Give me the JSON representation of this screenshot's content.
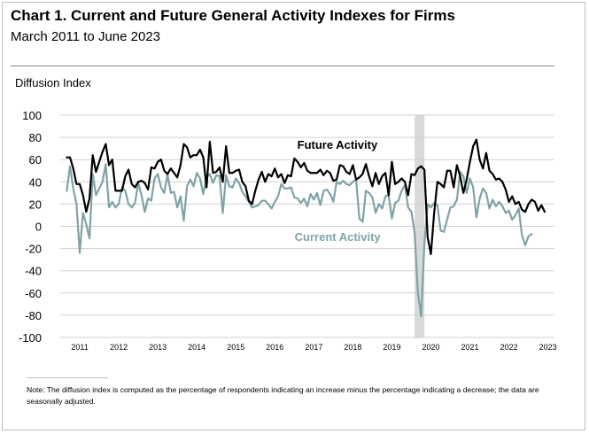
{
  "title": "Chart 1. Current and Future General Activity Indexes for Firms",
  "subtitle": "March 2011 to June 2023",
  "note": "Note:  The diffusion index is computed as the percentage of respondents indicating an increase minus the percentage indicating a decrease; the data are seasonally adjusted.",
  "colors": {
    "future": "#000000",
    "current": "#7fa3a8",
    "recession": "#d9d9d9",
    "grid": "#d0d0d0"
  },
  "chart_data": {
    "type": "line",
    "title": "Chart 1. Current and Future General Activity Indexes for Firms",
    "ylabel": "Diffusion Index",
    "xlabel": "",
    "ylim": [
      -100,
      100
    ],
    "yticks": [
      100,
      80,
      60,
      40,
      20,
      0,
      -20,
      -40,
      -60,
      -80,
      -100
    ],
    "xticks": [
      "2011",
      "2012",
      "2013",
      "2014",
      "2015",
      "2016",
      "2017",
      "2018",
      "2019",
      "2020",
      "2021",
      "2022",
      "2023"
    ],
    "start": "2011-03",
    "end": "2023-06",
    "recession_band": {
      "start": "2020-02",
      "end": "2020-04"
    },
    "annotations": [
      {
        "text": "Future Activity",
        "series": "Future Activity",
        "at": "2017-06",
        "value": 73
      },
      {
        "text": "Current Activity",
        "series": "Current Activity",
        "at": "2017-06",
        "value": -10
      }
    ],
    "series": [
      {
        "name": "Future Activity",
        "values": [
          62,
          62,
          52,
          38,
          38,
          28,
          13,
          25,
          64,
          49,
          58,
          67,
          74,
          55,
          60,
          32,
          32,
          32,
          45,
          51,
          38,
          35,
          40,
          41,
          39,
          33,
          53,
          52,
          58,
          60,
          50,
          47,
          52,
          48,
          44,
          55,
          74,
          71,
          62,
          64,
          64,
          69,
          62,
          35,
          76,
          48,
          49,
          53,
          40,
          72,
          48,
          48,
          50,
          51,
          40,
          36,
          23,
          20,
          32,
          42,
          49,
          40,
          47,
          45,
          52,
          44,
          47,
          39,
          46,
          45,
          61,
          58,
          53,
          57,
          50,
          48,
          48,
          48,
          51,
          46,
          50,
          48,
          41,
          42,
          55,
          54,
          49,
          47,
          55,
          42,
          44,
          47,
          56,
          45,
          36,
          48,
          38,
          45,
          48,
          28,
          58,
          38,
          40,
          43,
          40,
          28,
          47,
          46,
          52,
          54,
          51,
          -10,
          -25,
          12,
          40,
          38,
          35,
          50,
          50,
          35,
          55,
          45,
          30,
          42,
          58,
          72,
          78,
          60,
          52,
          66,
          50,
          47,
          42,
          43,
          40,
          33,
          22,
          27,
          20,
          22,
          15,
          13,
          20,
          24,
          22,
          14,
          19,
          13
        ],
        "label": "Future Activity"
      },
      {
        "name": "Current Activity",
        "values": [
          32,
          54,
          34,
          20,
          -24,
          12,
          2,
          -11,
          47,
          28,
          34,
          40,
          56,
          17,
          22,
          17,
          20,
          35,
          32,
          20,
          17,
          21,
          39,
          28,
          13,
          25,
          23,
          43,
          47,
          35,
          30,
          47,
          30,
          31,
          17,
          27,
          5,
          36,
          42,
          36,
          48,
          43,
          29,
          44,
          47,
          39,
          46,
          45,
          12,
          46,
          36,
          35,
          43,
          39,
          31,
          27,
          22,
          17,
          18,
          19,
          23,
          23,
          20,
          16,
          22,
          27,
          38,
          34,
          34,
          35,
          26,
          25,
          21,
          25,
          18,
          29,
          24,
          30,
          19,
          32,
          33,
          29,
          22,
          40,
          38,
          41,
          38,
          37,
          40,
          42,
          7,
          4,
          32,
          30,
          26,
          12,
          20,
          16,
          27,
          28,
          7,
          21,
          23,
          32,
          37,
          17,
          13,
          -6,
          -60,
          -81,
          -15,
          20,
          17,
          21,
          19,
          -4,
          -5,
          6,
          17,
          18,
          24,
          49,
          45,
          30,
          43,
          35,
          8,
          25,
          34,
          30,
          16,
          24,
          18,
          22,
          18,
          12,
          14,
          6,
          10,
          16,
          -8,
          -17,
          -9,
          -7
        ],
        "label": "Current Activity"
      }
    ]
  }
}
